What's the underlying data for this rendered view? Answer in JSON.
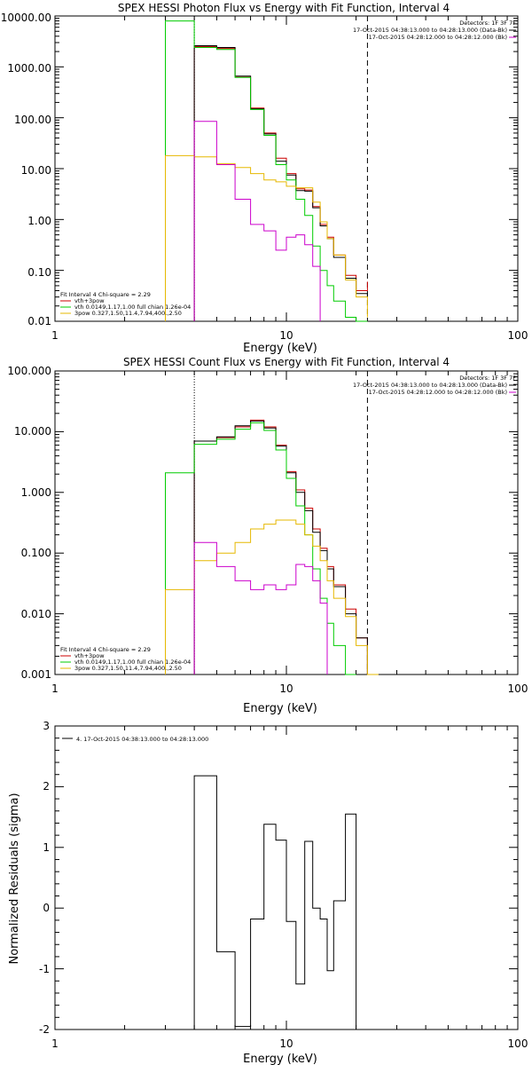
{
  "chart_data": [
    {
      "type": "line",
      "title": "SPEX HESSI Photon Flux vs Energy with Fit Function, Interval 4",
      "xlabel": "Energy (keV)",
      "ylabel": "",
      "xscale": "log",
      "yscale": "log",
      "xlim": [
        1,
        100
      ],
      "ylim": [
        0.01,
        10000
      ],
      "x_ticks": [
        "1",
        "10",
        "100"
      ],
      "y_ticks": [
        "0.01",
        "0.10",
        "1.00",
        "10.00",
        "100.00",
        "1000.00",
        "10000.00"
      ],
      "bin_edges": [
        3.0,
        4.0,
        5.0,
        6.0,
        7.0,
        8.0,
        9.0,
        10.0,
        11.0,
        12.0,
        13.0,
        14.0,
        15.0,
        16.0,
        18.0,
        20.0,
        22.4
      ],
      "series": [
        {
          "name": "vth+3pow",
          "color": "#cc0000",
          "values": [
            null,
            2500,
            2300,
            650,
            155,
            50,
            16,
            8,
            4,
            3.8,
            1.8,
            0.8,
            0.45,
            0.2,
            0.08,
            0.04,
            0.06
          ]
        },
        {
          "name": "data",
          "color": "#000000",
          "values": [
            null,
            2600,
            2400,
            660,
            150,
            48,
            14,
            7.5,
            3.7,
            3.6,
            1.7,
            0.75,
            0.42,
            0.18,
            0.07,
            0.035,
            0.03
          ]
        },
        {
          "name": "vth 0.0149,1.17,1.00  full chian 1.26e-04",
          "color": "#00cc00",
          "values": [
            8000,
            2400,
            2200,
            620,
            145,
            45,
            12,
            6,
            2.5,
            1.2,
            0.3,
            0.1,
            0.05,
            0.025,
            0.012,
            0.005,
            null
          ]
        },
        {
          "name": "3pow 0.327,1.50,11.4,7.94,400.,2.50",
          "color": "#e6b800",
          "values": [
            18,
            17,
            12.5,
            10.5,
            8,
            6,
            5.5,
            4.5,
            4.2,
            4.2,
            2.2,
            0.9,
            0.42,
            0.2,
            0.065,
            0.03,
            0.012
          ]
        },
        {
          "name": "background",
          "color": "#cc00cc",
          "values": [
            null,
            85,
            12,
            2.5,
            0.8,
            0.6,
            0.25,
            0.45,
            0.5,
            0.32,
            0.12,
            null,
            null,
            null,
            null,
            null,
            null
          ]
        }
      ],
      "legend_top": [
        "Detectors: 1F 3F 7F",
        "17-Oct-2015 04:38:13.000 to 04:28:13.000 (Data-Bk)",
        "17-Oct-2015 04:28:12.000 to 04:28:12.000 (Bk)"
      ],
      "legend_top_placement": "top-right",
      "legend_bottom": [
        "Fit Interval 4    Chi-square = 2.29",
        "vth+3pow",
        "vth 0.0149,1.17,1.00  full chian 1.26e-04",
        "3pow 0.327,1.50,11.4,7.94,400.,2.50"
      ],
      "legend_bottom_placement": "bottom-left",
      "vline_dotted_keV": 4.0,
      "vline_dashed_keV": 22.4
    },
    {
      "type": "line",
      "title": "SPEX HESSI Count Flux vs Energy with Fit Function, Interval 4",
      "xlabel": "Energy (keV)",
      "ylabel": "",
      "xscale": "log",
      "yscale": "log",
      "xlim": [
        1,
        100
      ],
      "ylim": [
        0.001,
        100
      ],
      "x_ticks": [
        "1",
        "10",
        "100"
      ],
      "y_ticks": [
        "0.001",
        "0.010",
        "0.100",
        "1.000",
        "10.000",
        "100.000"
      ],
      "bin_edges": [
        3.0,
        4.0,
        5.0,
        6.0,
        7.0,
        8.0,
        9.0,
        10.0,
        11.0,
        12.0,
        13.0,
        14.0,
        15.0,
        16.0,
        18.0,
        20.0,
        22.4,
        25.0
      ],
      "series": [
        {
          "name": "vth+3pow",
          "color": "#cc0000",
          "values": [
            null,
            7,
            8,
            12,
            15.5,
            12,
            6,
            2.2,
            1.1,
            0.55,
            0.25,
            0.12,
            0.06,
            0.03,
            0.012,
            0.004,
            null
          ]
        },
        {
          "name": "data",
          "color": "#000000",
          "values": [
            null,
            7,
            8.2,
            12.5,
            15,
            11.5,
            5.8,
            2.1,
            1,
            0.5,
            0.22,
            0.11,
            0.055,
            0.028,
            0.01,
            0.004,
            null
          ]
        },
        {
          "name": "vth 0.0149,1.17,1.00  full chian 1.26e-04",
          "color": "#00cc00",
          "values": [
            2.1,
            6.2,
            7.5,
            11,
            14,
            10.5,
            5,
            1.7,
            0.6,
            0.2,
            0.055,
            0.018,
            0.007,
            0.003,
            0.001,
            null,
            null
          ]
        },
        {
          "name": "3pow 0.327,1.50,11.4,7.94,400.,2.50",
          "color": "#e6b800",
          "values": [
            0.025,
            0.075,
            0.1,
            0.15,
            0.25,
            0.3,
            0.35,
            0.35,
            0.3,
            0.2,
            0.13,
            0.075,
            0.035,
            0.018,
            0.009,
            0.003,
            0.001
          ]
        },
        {
          "name": "background",
          "color": "#cc00cc",
          "values": [
            null,
            0.15,
            0.06,
            0.035,
            0.025,
            0.03,
            0.025,
            0.03,
            0.065,
            0.06,
            0.035,
            0.015,
            null,
            null,
            null,
            null,
            null
          ]
        }
      ],
      "legend_top": [
        "Detectors: 1F 3F 7F",
        "17-Oct-2015 04:38:13.000 to 04:28:13.000 (Data-Bk)",
        "17-Oct-2015 04:28:12.000 to 04:28:12.000 (Bk)"
      ],
      "legend_top_placement": "top-right",
      "legend_bottom": [
        "Fit Interval 4    Chi-square = 2.29",
        "vth+3pow",
        "vth 0.0149,1.17,1.00  full chian 1.26e-04",
        "3pow 0.327,1.50,11.4,7.94,400.,2.50"
      ],
      "legend_bottom_placement": "bottom-left",
      "vline_dotted_keV": 4.0,
      "vline_dashed_keV": 22.4
    },
    {
      "type": "line",
      "title": "",
      "xlabel": "Energy (keV)",
      "ylabel": "Normalized Residuals (sigma)",
      "xscale": "log",
      "yscale": "linear",
      "xlim": [
        1,
        100
      ],
      "ylim": [
        -2,
        3
      ],
      "x_ticks": [
        "1",
        "10",
        "100"
      ],
      "y_ticks": [
        "-2",
        "-1",
        "0",
        "1",
        "2",
        "3"
      ],
      "bin_edges": [
        4.0,
        5.0,
        6.0,
        7.0,
        8.0,
        9.0,
        10.0,
        11.0,
        12.0,
        13.0,
        14.0,
        15.0,
        16.0,
        18.0,
        20.0,
        22.4
      ],
      "series": [
        {
          "name": "4. 17-Oct-2015 04:38:13.000 to 04:28:13.000",
          "color": "#000000",
          "values": [
            2.18,
            -0.72,
            -1.95,
            -0.18,
            1.38,
            1.12,
            -0.22,
            -1.25,
            1.1,
            0.0,
            -0.18,
            -1.03,
            0.12,
            1.55,
            null
          ]
        }
      ],
      "legend_top": [
        "4. 17-Oct-2015 04:38:13.000 to 04:28:13.000"
      ],
      "legend_top_placement": "top-left"
    }
  ]
}
